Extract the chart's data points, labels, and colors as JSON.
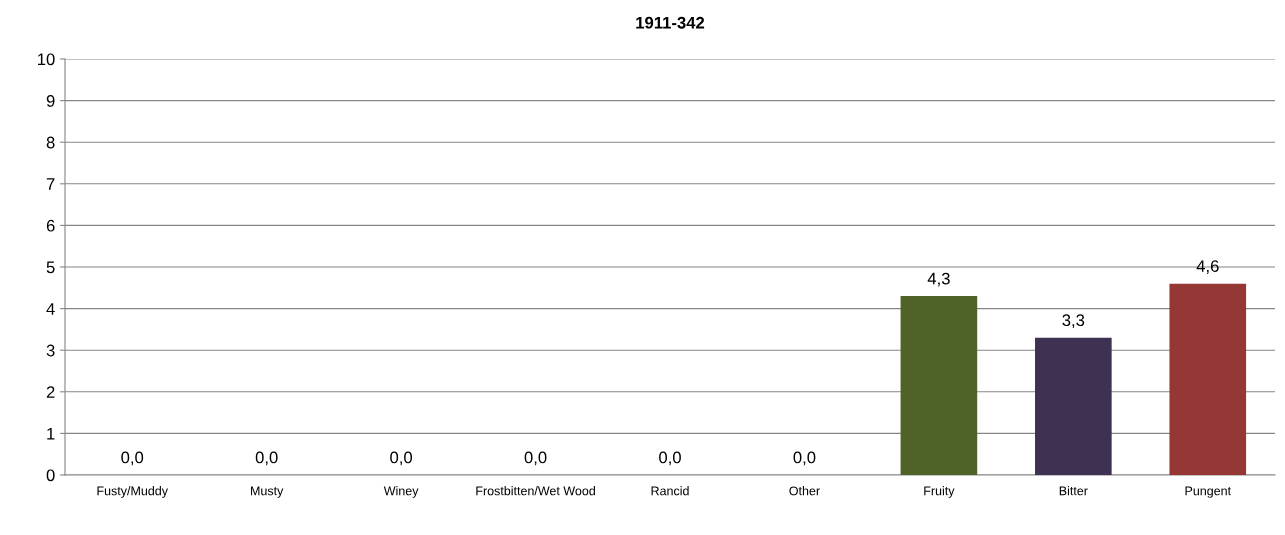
{
  "chart_data": {
    "type": "bar",
    "title": "1911-342",
    "categories": [
      "Fusty/Muddy",
      "Musty",
      "Winey",
      "Frostbitten/Wet Wood",
      "Rancid",
      "Other",
      "Fruity",
      "Bitter",
      "Pungent"
    ],
    "values": [
      0,
      0,
      0,
      0,
      0,
      0,
      4.3,
      3.3,
      4.6
    ],
    "value_labels": [
      "0,0",
      "0,0",
      "0,0",
      "0,0",
      "0,0",
      "0,0",
      "4,3",
      "3,3",
      "4,6"
    ],
    "colors": [
      "#4f81bd",
      "#4f81bd",
      "#4f81bd",
      "#4f81bd",
      "#4f81bd",
      "#4f81bd",
      "#4f6228",
      "#3f3151",
      "#953735"
    ],
    "ylim": [
      0,
      10
    ],
    "yticks": [
      0,
      1,
      2,
      3,
      4,
      5,
      6,
      7,
      8,
      9,
      10
    ],
    "grid": "y",
    "legend": false
  }
}
